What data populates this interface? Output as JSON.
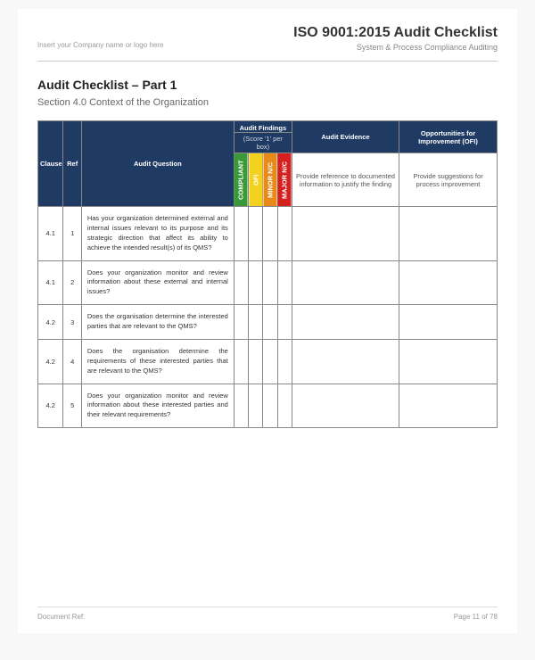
{
  "header": {
    "company_placeholder": "Insert your Company name or logo here",
    "doc_title": "ISO 9001:2015 Audit Checklist",
    "doc_subtitle": "System & Process Compliance Auditing"
  },
  "section": {
    "title": "Audit Checklist – Part 1",
    "subtitle": "Section 4.0 Context of the Organization"
  },
  "table": {
    "columns": {
      "clause": "Clause",
      "ref": "Ref",
      "question": "Audit Question",
      "findings_group": "Audit Findings",
      "findings_note": "(Score '1' per box)",
      "evidence": "Audit Evidence",
      "ofi": "Opportunities for Improvement (OFI)",
      "evidence_desc": "Provide reference to documented information to justify the finding",
      "ofi_desc": "Provide suggestions for process improvement"
    },
    "findings": [
      {
        "label": "COMPLIANT",
        "color": "#3a9a3a"
      },
      {
        "label": "OFI",
        "color": "#f2d21f"
      },
      {
        "label": "MINOR N/C",
        "color": "#e88a1a"
      },
      {
        "label": "MAJOR N/C",
        "color": "#d62020"
      }
    ],
    "col_widths": {
      "clause": 28,
      "ref": 20,
      "question": 168,
      "finding": 16,
      "evidence": 118,
      "ofi": 108
    },
    "rows": [
      {
        "clause": "4.1",
        "ref": "1",
        "question": "Has your organization determined external and internal issues relevant to its purpose and its strategic direction that affect its ability to achieve the intended result(s) of its QMS?"
      },
      {
        "clause": "4.1",
        "ref": "2",
        "question": "Does your organization monitor and review information about these external and internal issues?"
      },
      {
        "clause": "4.2",
        "ref": "3",
        "question": "Does the organisation determine the interested parties that are relevant to the QMS?"
      },
      {
        "clause": "4.2",
        "ref": "4",
        "question": "Does the organisation determine the requirements of these interested parties that are relevant to the QMS?"
      },
      {
        "clause": "4.2",
        "ref": "5",
        "question": "Does your organization monitor and review information about these interested parties and their relevant requirements?"
      }
    ]
  },
  "footer": {
    "left": "Document Ref:",
    "right": "Page 11 of 78"
  },
  "style": {
    "navy": "#1f3a63",
    "page_bg": "#ffffff",
    "body_bg": "#f8f8f8",
    "border": "#888888",
    "text": "#333333",
    "muted": "#888888"
  }
}
